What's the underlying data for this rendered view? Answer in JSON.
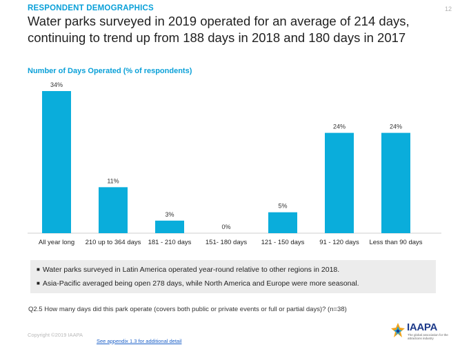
{
  "header": {
    "section_label": "RESPONDENT DEMOGRAPHICS",
    "page_number": "12",
    "headline_line1": "Water parks surveyed in 2019 operated for an average of 214 days,",
    "headline_line2": "continuing to trend up from 188 days in 2018 and 180 days in 2017"
  },
  "chart_data": {
    "type": "bar",
    "title": "Number of Days Operated (% of respondents)",
    "categories": [
      "All year long",
      "210 up to 364 days",
      "181 - 210 days",
      "151- 180 days",
      "121 - 150 days",
      "91 - 120 days",
      "Less than 90 days"
    ],
    "values": [
      34,
      11,
      3,
      0,
      5,
      24,
      24
    ],
    "value_labels": [
      "34%",
      "11%",
      "3%",
      "0%",
      "5%",
      "24%",
      "24%"
    ],
    "xlabel": "",
    "ylabel": "",
    "ylim": [
      0,
      34
    ],
    "grid": false,
    "color": "#0aaddb"
  },
  "notes": [
    "Water parks surveyed in Latin America operated year-round relative to other regions in 2018.",
    "Asia-Pacific averaged being open 278 days, while North America and Europe were more seasonal."
  ],
  "question": "Q2.5 How many days did this park operate (covers both public or private events or full or partial days)? (n=38)",
  "footer": {
    "copyright": "Copyright ©2019 IAAPA",
    "appendix_link": "See appendix 1.3 for additional detail"
  },
  "logo": {
    "wordmark": "IAAPA",
    "tagline": "The global association for the attractions industry"
  },
  "colors": {
    "accent": "#0aa0d8",
    "bar": "#0aaddb",
    "notes_bg": "#ececec"
  }
}
